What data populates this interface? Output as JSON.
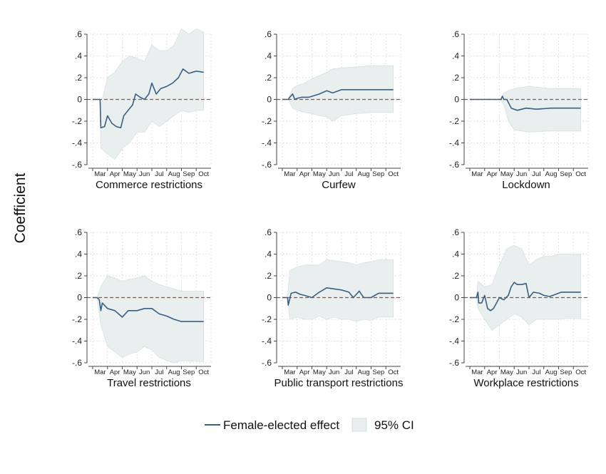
{
  "chart_data": {
    "type": "line",
    "ylabel": "Coefficient",
    "yticks": [
      ".6",
      ".4",
      ".2",
      "0",
      "-.2",
      "-.4",
      "-.6"
    ],
    "yticks_values": [
      0.6,
      0.4,
      0.2,
      0,
      -0.2,
      -0.4,
      -0.6
    ],
    "ylim": [
      -0.6,
      0.6
    ],
    "months": [
      "Mar",
      "Apr",
      "May",
      "Jun",
      "Jul",
      "Aug",
      "Sep",
      "Oct"
    ],
    "grid": "dotted",
    "legend_position": "bottom",
    "legend": {
      "line_label": "Female-elected effect",
      "ci_label": "95% CI"
    },
    "colors": {
      "line": "#3a5f82",
      "ci_fill": "#e8efee",
      "ci_edge": "#d6e2df",
      "zero_line": "#a84848",
      "grid": "#cfcfcf"
    },
    "panels": [
      {
        "title": "Commerce restrictions",
        "effect": [
          [
            0,
            0
          ],
          [
            0.5,
            0
          ],
          [
            0.55,
            -0.26
          ],
          [
            0.8,
            -0.25
          ],
          [
            1.0,
            -0.15
          ],
          [
            1.3,
            -0.22
          ],
          [
            1.6,
            -0.25
          ],
          [
            1.9,
            -0.26
          ],
          [
            2.1,
            -0.15
          ],
          [
            2.4,
            -0.1
          ],
          [
            2.7,
            -0.05
          ],
          [
            2.9,
            0.05
          ],
          [
            3.2,
            0.02
          ],
          [
            3.5,
            0.0
          ],
          [
            3.8,
            0.05
          ],
          [
            4.0,
            0.15
          ],
          [
            4.3,
            0.05
          ],
          [
            4.6,
            0.1
          ],
          [
            5.0,
            0.12
          ],
          [
            5.4,
            0.15
          ],
          [
            5.8,
            0.2
          ],
          [
            6.1,
            0.28
          ],
          [
            6.5,
            0.24
          ],
          [
            7.0,
            0.26
          ],
          [
            7.5,
            0.25
          ]
        ],
        "lower": [
          [
            0,
            0
          ],
          [
            0.5,
            0
          ],
          [
            0.55,
            -0.45
          ],
          [
            1.0,
            -0.5
          ],
          [
            1.5,
            -0.55
          ],
          [
            2.0,
            -0.45
          ],
          [
            2.5,
            -0.4
          ],
          [
            3.0,
            -0.3
          ],
          [
            3.5,
            -0.3
          ],
          [
            4.0,
            -0.2
          ],
          [
            4.5,
            -0.25
          ],
          [
            5.0,
            -0.2
          ],
          [
            5.5,
            -0.15
          ],
          [
            6.0,
            -0.1
          ],
          [
            6.5,
            -0.12
          ],
          [
            7.0,
            -0.1
          ],
          [
            7.5,
            -0.1
          ]
        ],
        "upper": [
          [
            0,
            0
          ],
          [
            0.5,
            0
          ],
          [
            0.55,
            -0.05
          ],
          [
            1.0,
            0.2
          ],
          [
            1.5,
            0.25
          ],
          [
            2.0,
            0.35
          ],
          [
            2.5,
            0.4
          ],
          [
            3.0,
            0.38
          ],
          [
            3.5,
            0.35
          ],
          [
            4.0,
            0.5
          ],
          [
            4.5,
            0.45
          ],
          [
            5.0,
            0.45
          ],
          [
            5.5,
            0.5
          ],
          [
            6.0,
            0.65
          ],
          [
            6.5,
            0.6
          ],
          [
            7.0,
            0.65
          ],
          [
            7.5,
            0.62
          ]
        ]
      },
      {
        "title": "Curfew",
        "effect": [
          [
            0,
            0
          ],
          [
            0.4,
            0
          ],
          [
            0.5,
            0.02
          ],
          [
            0.7,
            0.05
          ],
          [
            0.85,
            0.0
          ],
          [
            1.0,
            0.01
          ],
          [
            1.3,
            0.02
          ],
          [
            1.8,
            0.02
          ],
          [
            2.5,
            0.05
          ],
          [
            3.0,
            0.08
          ],
          [
            3.4,
            0.06
          ],
          [
            4.0,
            0.09
          ],
          [
            5.0,
            0.09
          ],
          [
            6.0,
            0.09
          ],
          [
            7.5,
            0.09
          ]
        ],
        "lower": [
          [
            0,
            0
          ],
          [
            0.4,
            0
          ],
          [
            0.7,
            -0.08
          ],
          [
            1.0,
            -0.1
          ],
          [
            1.5,
            -0.12
          ],
          [
            2.0,
            -0.13
          ],
          [
            2.5,
            -0.15
          ],
          [
            3.0,
            -0.16
          ],
          [
            3.4,
            -0.2
          ],
          [
            4.0,
            -0.15
          ],
          [
            5.0,
            -0.13
          ],
          [
            6.0,
            -0.12
          ],
          [
            7.5,
            -0.12
          ]
        ],
        "upper": [
          [
            0,
            0
          ],
          [
            0.4,
            0
          ],
          [
            0.7,
            0.1
          ],
          [
            1.0,
            0.13
          ],
          [
            1.5,
            0.15
          ],
          [
            2.0,
            0.19
          ],
          [
            2.5,
            0.22
          ],
          [
            3.0,
            0.25
          ],
          [
            3.4,
            0.28
          ],
          [
            4.0,
            0.29
          ],
          [
            5.0,
            0.3
          ],
          [
            6.0,
            0.31
          ],
          [
            7.5,
            0.31
          ]
        ]
      },
      {
        "title": "Lockdown",
        "effect": [
          [
            0,
            0
          ],
          [
            2.1,
            0
          ],
          [
            2.2,
            0.03
          ],
          [
            2.3,
            0.0
          ],
          [
            2.5,
            0.0
          ],
          [
            2.8,
            -0.08
          ],
          [
            3.2,
            -0.1
          ],
          [
            3.8,
            -0.08
          ],
          [
            4.5,
            -0.09
          ],
          [
            5.5,
            -0.08
          ],
          [
            7.5,
            -0.08
          ]
        ],
        "lower": [
          [
            0,
            0
          ],
          [
            2.1,
            0
          ],
          [
            2.3,
            -0.05
          ],
          [
            2.6,
            -0.2
          ],
          [
            3.0,
            -0.28
          ],
          [
            4.0,
            -0.3
          ],
          [
            5.5,
            -0.29
          ],
          [
            7.5,
            -0.29
          ]
        ],
        "upper": [
          [
            0,
            0
          ],
          [
            2.1,
            0
          ],
          [
            2.3,
            0.06
          ],
          [
            2.6,
            0.08
          ],
          [
            3.0,
            0.1
          ],
          [
            4.0,
            0.12
          ],
          [
            5.5,
            0.1
          ],
          [
            7.5,
            0.1
          ]
        ]
      },
      {
        "title": "Travel restrictions",
        "effect": [
          [
            0,
            0
          ],
          [
            0.3,
            0
          ],
          [
            0.45,
            -0.02
          ],
          [
            0.55,
            -0.12
          ],
          [
            0.65,
            -0.05
          ],
          [
            1.0,
            -0.1
          ],
          [
            1.5,
            -0.12
          ],
          [
            2.0,
            -0.18
          ],
          [
            2.4,
            -0.12
          ],
          [
            3.0,
            -0.12
          ],
          [
            3.5,
            -0.1
          ],
          [
            4.0,
            -0.1
          ],
          [
            4.5,
            -0.15
          ],
          [
            5.0,
            -0.17
          ],
          [
            5.5,
            -0.2
          ],
          [
            6.0,
            -0.22
          ],
          [
            7.5,
            -0.22
          ]
        ],
        "lower": [
          [
            0,
            0
          ],
          [
            0.3,
            0
          ],
          [
            0.55,
            -0.25
          ],
          [
            1.0,
            -0.45
          ],
          [
            1.5,
            -0.5
          ],
          [
            2.0,
            -0.55
          ],
          [
            2.5,
            -0.52
          ],
          [
            3.0,
            -0.5
          ],
          [
            3.5,
            -0.45
          ],
          [
            4.0,
            -0.48
          ],
          [
            4.5,
            -0.55
          ],
          [
            5.0,
            -0.58
          ],
          [
            5.5,
            -0.6
          ],
          [
            6.0,
            -0.58
          ],
          [
            7.5,
            -0.59
          ]
        ],
        "upper": [
          [
            0,
            0
          ],
          [
            0.3,
            0
          ],
          [
            0.55,
            0.1
          ],
          [
            1.0,
            0.2
          ],
          [
            1.5,
            0.18
          ],
          [
            2.0,
            0.15
          ],
          [
            2.5,
            0.17
          ],
          [
            3.0,
            0.18
          ],
          [
            3.5,
            0.2
          ],
          [
            4.0,
            0.15
          ],
          [
            4.5,
            0.12
          ],
          [
            5.0,
            0.1
          ],
          [
            5.5,
            0.08
          ],
          [
            6.0,
            0.06
          ],
          [
            7.5,
            0.06
          ]
        ]
      },
      {
        "title": "Public transport restrictions",
        "effect": [
          [
            0,
            0
          ],
          [
            0.35,
            0
          ],
          [
            0.4,
            -0.07
          ],
          [
            0.6,
            0.04
          ],
          [
            0.9,
            0.05
          ],
          [
            1.2,
            0.03
          ],
          [
            1.5,
            0.02
          ],
          [
            2.0,
            0.0
          ],
          [
            2.5,
            0.05
          ],
          [
            3.0,
            0.09
          ],
          [
            3.5,
            0.08
          ],
          [
            4.0,
            0.07
          ],
          [
            4.5,
            0.05
          ],
          [
            4.8,
            0.0
          ],
          [
            5.2,
            0.06
          ],
          [
            5.5,
            0.0
          ],
          [
            6.0,
            0.0
          ],
          [
            6.5,
            0.04
          ],
          [
            7.5,
            0.04
          ]
        ],
        "lower": [
          [
            0,
            0
          ],
          [
            0.35,
            0
          ],
          [
            0.5,
            -0.2
          ],
          [
            1.0,
            -0.18
          ],
          [
            1.5,
            -0.2
          ],
          [
            2.0,
            -0.2
          ],
          [
            2.5,
            -0.17
          ],
          [
            3.0,
            -0.2
          ],
          [
            3.5,
            -0.18
          ],
          [
            4.0,
            -0.2
          ],
          [
            4.5,
            -0.2
          ],
          [
            5.0,
            -0.22
          ],
          [
            5.5,
            -0.2
          ],
          [
            6.0,
            -0.21
          ],
          [
            6.5,
            -0.18
          ],
          [
            7.5,
            -0.18
          ]
        ],
        "upper": [
          [
            0,
            0
          ],
          [
            0.35,
            0
          ],
          [
            0.5,
            0.25
          ],
          [
            1.0,
            0.28
          ],
          [
            1.5,
            0.3
          ],
          [
            2.0,
            0.3
          ],
          [
            2.5,
            0.3
          ],
          [
            3.0,
            0.35
          ],
          [
            3.5,
            0.34
          ],
          [
            4.0,
            0.33
          ],
          [
            4.5,
            0.32
          ],
          [
            5.0,
            0.3
          ],
          [
            5.5,
            0.32
          ],
          [
            6.0,
            0.33
          ],
          [
            6.5,
            0.35
          ],
          [
            7.5,
            0.35
          ]
        ]
      },
      {
        "title": "Workplace restrictions",
        "effect": [
          [
            0,
            0
          ],
          [
            0.45,
            0
          ],
          [
            0.55,
            0.05
          ],
          [
            0.6,
            -0.05
          ],
          [
            0.8,
            -0.05
          ],
          [
            1.0,
            0.02
          ],
          [
            1.2,
            -0.1
          ],
          [
            1.4,
            -0.12
          ],
          [
            1.6,
            -0.1
          ],
          [
            1.8,
            -0.05
          ],
          [
            2.0,
            0.0
          ],
          [
            2.3,
            -0.02
          ],
          [
            2.6,
            0.02
          ],
          [
            2.8,
            0.1
          ],
          [
            3.0,
            0.14
          ],
          [
            3.2,
            0.12
          ],
          [
            3.5,
            0.12
          ],
          [
            3.8,
            0.13
          ],
          [
            4.0,
            0.0
          ],
          [
            4.3,
            0.05
          ],
          [
            4.7,
            0.04
          ],
          [
            5.0,
            0.02
          ],
          [
            5.4,
            0.01
          ],
          [
            5.8,
            0.03
          ],
          [
            6.2,
            0.05
          ],
          [
            7.5,
            0.05
          ]
        ],
        "lower": [
          [
            0,
            0
          ],
          [
            0.45,
            0
          ],
          [
            0.55,
            -0.1
          ],
          [
            1.0,
            -0.2
          ],
          [
            1.5,
            -0.3
          ],
          [
            2.0,
            -0.25
          ],
          [
            2.5,
            -0.2
          ],
          [
            3.0,
            -0.15
          ],
          [
            3.5,
            -0.18
          ],
          [
            4.0,
            -0.25
          ],
          [
            4.5,
            -0.2
          ],
          [
            5.0,
            -0.2
          ],
          [
            5.5,
            -0.2
          ],
          [
            6.0,
            -0.2
          ],
          [
            6.5,
            -0.19
          ],
          [
            7.5,
            -0.19
          ]
        ],
        "upper": [
          [
            0,
            0
          ],
          [
            0.45,
            0
          ],
          [
            0.55,
            0.15
          ],
          [
            1.0,
            0.1
          ],
          [
            1.5,
            0.12
          ],
          [
            2.0,
            0.3
          ],
          [
            2.5,
            0.45
          ],
          [
            3.0,
            0.48
          ],
          [
            3.5,
            0.45
          ],
          [
            4.0,
            0.3
          ],
          [
            4.5,
            0.35
          ],
          [
            5.0,
            0.38
          ],
          [
            5.5,
            0.38
          ],
          [
            6.0,
            0.4
          ],
          [
            6.5,
            0.4
          ],
          [
            7.5,
            0.4
          ]
        ]
      }
    ]
  }
}
